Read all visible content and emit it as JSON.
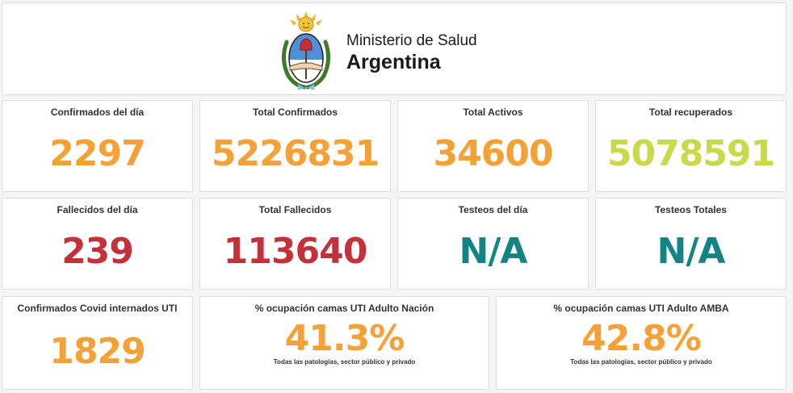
{
  "header": {
    "ministry": "Ministerio de Salud",
    "country": "Argentina",
    "logo_icon": "argentina-coat-of-arms-icon"
  },
  "panels": [
    {
      "title": "Confirmados del día",
      "value": "2297",
      "color": "#f5a137"
    },
    {
      "title": "Total Confirmados",
      "value": "5226831",
      "color": "#f5a137"
    },
    {
      "title": "Total Activos",
      "value": "34600",
      "color": "#f5a137"
    },
    {
      "title": "Total recuperados",
      "value": "5078591",
      "color": "#c9d94a"
    },
    {
      "title": "Fallecidos del día",
      "value": "239",
      "color": "#c4313b"
    },
    {
      "title": "Total Fallecidos",
      "value": "113640",
      "color": "#c4313b"
    },
    {
      "title": "Testeos del día",
      "value": "N/A",
      "color": "#138483"
    },
    {
      "title": "Testeos Totales",
      "value": "N/A",
      "color": "#138483"
    },
    {
      "title": "Confirmados Covid internados UTI",
      "value": "1829",
      "color": "#f5a137"
    },
    {
      "title": "% ocupación camas UTI Adulto Nación",
      "value": "41.3%",
      "subtitle": "Todas las patologías, sector público y privado",
      "color": "#f5a137"
    },
    {
      "title": "% ocupación camas UTI Adulto AMBA",
      "value": "42.8%",
      "subtitle": "Todas las patologías, sector público y privado",
      "color": "#f5a137"
    }
  ]
}
